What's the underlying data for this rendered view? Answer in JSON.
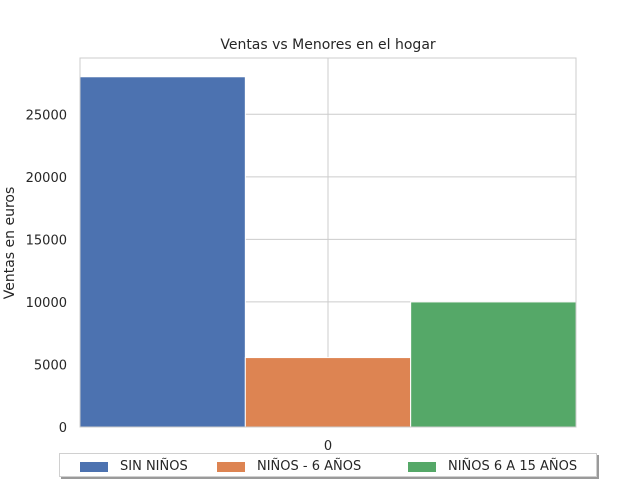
{
  "chart_data": {
    "type": "bar",
    "title": "Ventas vs Menores en el hogar",
    "xlabel": "",
    "ylabel": "Ventas en euros",
    "categories": [
      "0"
    ],
    "ylim": [
      0,
      29500
    ],
    "yticks": [
      0,
      5000,
      10000,
      15000,
      20000,
      25000
    ],
    "grid": true,
    "legend_position": "bottom",
    "series": [
      {
        "name": "SIN NIÑOS",
        "values": [
          28000
        ],
        "color": "#4c72b0"
      },
      {
        "name": "NIÑOS - 6 AÑOS",
        "values": [
          5550
        ],
        "color": "#dd8452"
      },
      {
        "name": "NIÑOS 6 A 15 AÑOS",
        "values": [
          10000
        ],
        "color": "#55a868"
      }
    ]
  }
}
